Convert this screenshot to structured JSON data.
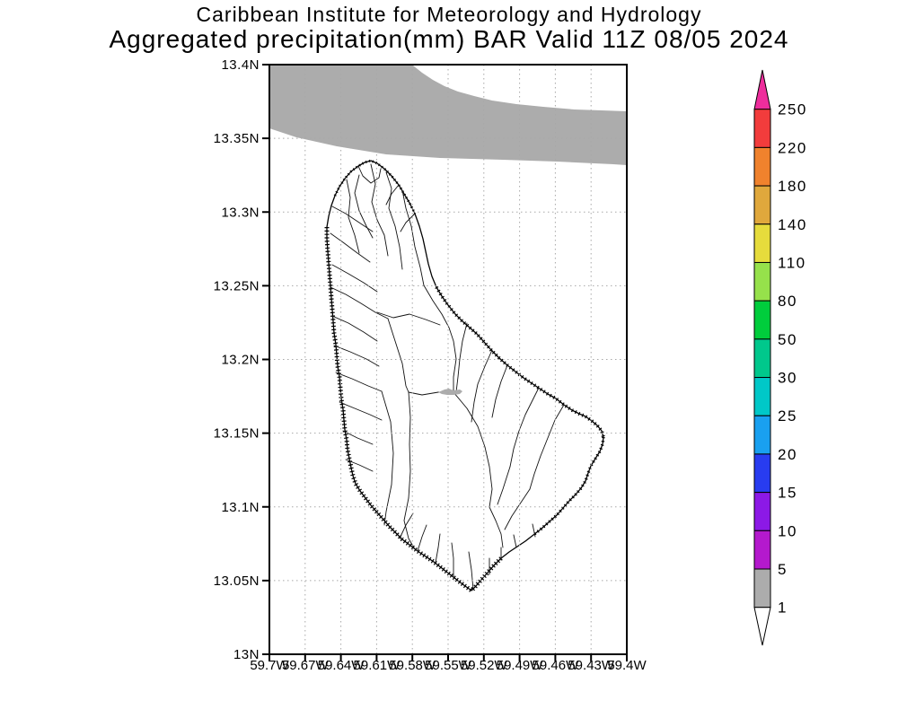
{
  "title": {
    "line1": "Caribbean Institute for Meteorology and Hydrology",
    "line2": "Aggregated precipitation(mm) BAR Valid 11Z 08/05 2024"
  },
  "axes": {
    "lat_labels": [
      "13.4N",
      "13.35N",
      "13.3N",
      "13.25N",
      "13.2N",
      "13.15N",
      "13.1N",
      "13.05N",
      "13N"
    ],
    "lon_labels": [
      "59.7W",
      "59.67W",
      "59.64W",
      "59.61W",
      "59.58W",
      "59.55W",
      "59.52W",
      "59.49W",
      "59.46W",
      "59.43W",
      "59.4W"
    ]
  },
  "colorbar": {
    "levels": [
      "250",
      "220",
      "180",
      "140",
      "110",
      "80",
      "50",
      "30",
      "25",
      "20",
      "15",
      "10",
      "5",
      "1"
    ],
    "segment_colors": [
      "#F23C3C",
      "#F0822D",
      "#E0A83C",
      "#E6DC3C",
      "#96E14B",
      "#00CD3C",
      "#00C88C",
      "#00C8C8",
      "#19A0F0",
      "#283CF0",
      "#8C19E6",
      "#B419CD",
      "#ACACAC"
    ],
    "above_max_color": "#EE2D9C",
    "below_min_color": "#FFFFFF"
  },
  "map_colors": {
    "shaded_band": "#ACACAC",
    "island_fill": "#FFFFFF",
    "grid": "#A8A8A8",
    "frame": "#000000"
  },
  "chart_data": {
    "type": "heatmap",
    "subtype": "shaded-contour precipitation map",
    "region": "Barbados (BAR)",
    "variable": "Aggregated precipitation (mm)",
    "valid_time": "11Z 08/05 2024",
    "source": "Caribbean Institute for Meteorology and Hydrology",
    "lat_range_deg_N": [
      13.0,
      13.4
    ],
    "lon_range_deg_W": [
      59.7,
      59.4
    ],
    "lat_ticks": [
      13.4,
      13.35,
      13.3,
      13.25,
      13.2,
      13.15,
      13.1,
      13.05,
      13.0
    ],
    "lon_ticks": [
      59.7,
      59.67,
      59.64,
      59.61,
      59.58,
      59.55,
      59.52,
      59.49,
      59.46,
      59.43,
      59.4
    ],
    "scale_levels_mm": [
      1,
      5,
      10,
      15,
      20,
      25,
      30,
      50,
      80,
      110,
      140,
      180,
      220,
      250
    ],
    "scale_colors_low_to_high": [
      "#FFFFFF",
      "#ACACAC",
      "#B419CD",
      "#8C19E6",
      "#283CF0",
      "#19A0F0",
      "#00C8C8",
      "#00C88C",
      "#00CD3C",
      "#96E14B",
      "#E6DC3C",
      "#E0A83C",
      "#F0822D",
      "#F23C3C",
      "#EE2D9C"
    ],
    "grid": "dotted lat/lon graticule every 0.05 deg lat / 0.03 deg lon",
    "legend_position": "right vertical colorbar with arrow caps",
    "shaded_features": [
      {
        "value_range_mm": "1-5",
        "color": "#ACACAC",
        "description": "Wide band across the top of the domain, roughly 13.33N-13.4N, bottom edge sloping from 13.365N at 59.7W down to about 13.345N at 59.4W; touches top frame west of 59.58W"
      },
      {
        "value_range_mm": "1-5",
        "color": "#ACACAC",
        "description": "Small patch in the island interior near 13.187N, 59.585W"
      }
    ],
    "basemap": "Barbados coastline with dense watershed/drainage-basin boundary polygons; coastline drawn with dense black hatching"
  }
}
